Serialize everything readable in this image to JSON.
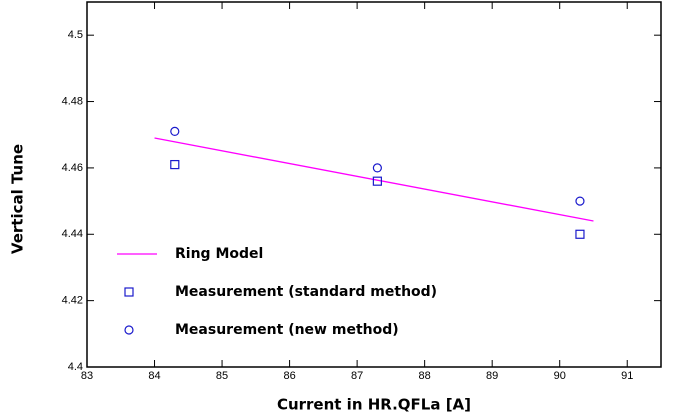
{
  "chart_data": {
    "type": "scatter",
    "x_label": "Current in HR.QFLa [A]",
    "y_label": "Vertical Tune",
    "xlim": [
      83,
      91.5
    ],
    "ylim": [
      4.4,
      4.51
    ],
    "xticks": [
      83,
      84,
      85,
      86,
      87,
      88,
      89,
      90,
      91
    ],
    "yticks": [
      4.4,
      4.42,
      4.44,
      4.46,
      4.48,
      4.5
    ],
    "legend": "lower-left",
    "series": [
      {
        "name": "Ring Model",
        "color": "#ff00ff",
        "marker": "line",
        "x": [
          84,
          90.5
        ],
        "values": [
          4.469,
          4.444
        ]
      },
      {
        "name": "Measurement (standard method)",
        "color": "#1a1acc",
        "marker": "square",
        "x": [
          84.3,
          87.3,
          90.3
        ],
        "values": [
          4.461,
          4.456,
          4.44
        ]
      },
      {
        "name": "Measurement (new method)",
        "color": "#1a1acc",
        "marker": "circle",
        "x": [
          84.3,
          87.3,
          90.3
        ],
        "values": [
          4.471,
          4.46,
          4.45
        ]
      }
    ]
  }
}
